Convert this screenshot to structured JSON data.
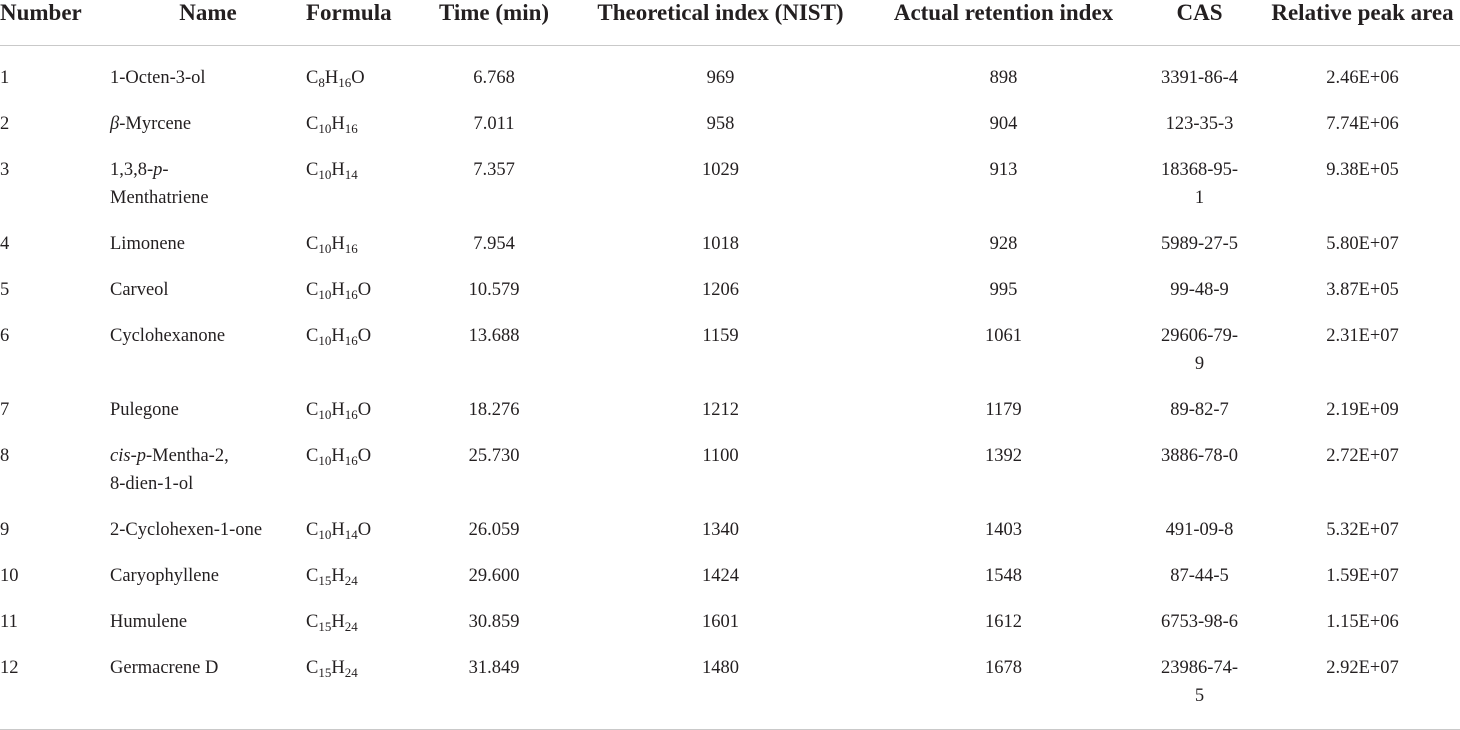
{
  "headers": {
    "number": "Number",
    "name": "Name",
    "formula": "Formula",
    "time": "Time (min)",
    "theoretical": "Theoretical index (NIST)",
    "actual": "Actual retention index",
    "cas": "CAS",
    "area": "Relative peak area"
  },
  "rows": [
    {
      "number": "1",
      "name": [
        {
          "t": "1-Octen-3-ol"
        }
      ],
      "formula": [
        {
          "t": "C"
        },
        {
          "t": "8",
          "sub": true
        },
        {
          "t": "H"
        },
        {
          "t": "16",
          "sub": true
        },
        {
          "t": "O"
        }
      ],
      "time": "6.768",
      "theoretical": "969",
      "actual": "898",
      "cas": [
        "3391-86-4"
      ],
      "area": "2.46E+06"
    },
    {
      "number": "2",
      "name": [
        {
          "t": "β",
          "i": true
        },
        {
          "t": "-Myrcene"
        }
      ],
      "formula": [
        {
          "t": "C"
        },
        {
          "t": "10",
          "sub": true
        },
        {
          "t": "H"
        },
        {
          "t": "16",
          "sub": true
        }
      ],
      "time": "7.011",
      "theoretical": "958",
      "actual": "904",
      "cas": [
        "123-35-3"
      ],
      "area": "7.74E+06"
    },
    {
      "number": "3",
      "name": [
        {
          "t": "1,3,8-"
        },
        {
          "t": "p",
          "i": true
        },
        {
          "t": "-"
        },
        {
          "br": true
        },
        {
          "t": "Menthatriene"
        }
      ],
      "formula": [
        {
          "t": "C"
        },
        {
          "t": "10",
          "sub": true
        },
        {
          "t": "H"
        },
        {
          "t": "14",
          "sub": true
        }
      ],
      "time": "7.357",
      "theoretical": "1029",
      "actual": "913",
      "cas": [
        "18368-95-",
        "1"
      ],
      "area": "9.38E+05"
    },
    {
      "number": "4",
      "name": [
        {
          "t": "Limonene"
        }
      ],
      "formula": [
        {
          "t": "C"
        },
        {
          "t": "10",
          "sub": true
        },
        {
          "t": "H"
        },
        {
          "t": "16",
          "sub": true
        }
      ],
      "time": "7.954",
      "theoretical": "1018",
      "actual": "928",
      "cas": [
        "5989-27-5"
      ],
      "area": "5.80E+07"
    },
    {
      "number": "5",
      "name": [
        {
          "t": "Carveol"
        }
      ],
      "formula": [
        {
          "t": "C"
        },
        {
          "t": "10",
          "sub": true
        },
        {
          "t": "H"
        },
        {
          "t": "16",
          "sub": true
        },
        {
          "t": "O"
        }
      ],
      "time": "10.579",
      "theoretical": "1206",
      "actual": "995",
      "cas": [
        "99-48-9"
      ],
      "area": "3.87E+05"
    },
    {
      "number": "6",
      "name": [
        {
          "t": "Cyclohexanone"
        }
      ],
      "formula": [
        {
          "t": "C"
        },
        {
          "t": "10",
          "sub": true
        },
        {
          "t": "H"
        },
        {
          "t": "16",
          "sub": true
        },
        {
          "t": "O"
        }
      ],
      "time": "13.688",
      "theoretical": "1159",
      "actual": "1061",
      "cas": [
        "29606-79-",
        "9"
      ],
      "area": "2.31E+07"
    },
    {
      "number": "7",
      "name": [
        {
          "t": "Pulegone"
        }
      ],
      "formula": [
        {
          "t": "C"
        },
        {
          "t": "10",
          "sub": true
        },
        {
          "t": "H"
        },
        {
          "t": "16",
          "sub": true
        },
        {
          "t": "O"
        }
      ],
      "time": "18.276",
      "theoretical": "1212",
      "actual": "1179",
      "cas": [
        "89-82-7"
      ],
      "area": "2.19E+09"
    },
    {
      "number": "8",
      "name": [
        {
          "t": "cis",
          "i": true
        },
        {
          "t": "-"
        },
        {
          "t": "p",
          "i": true
        },
        {
          "t": "-Mentha-2,"
        },
        {
          "br": true
        },
        {
          "t": "8-dien-1-ol"
        }
      ],
      "formula": [
        {
          "t": "C"
        },
        {
          "t": "10",
          "sub": true
        },
        {
          "t": "H"
        },
        {
          "t": "16",
          "sub": true
        },
        {
          "t": "O"
        }
      ],
      "time": "25.730",
      "theoretical": "1100",
      "actual": "1392",
      "cas": [
        "3886-78-0"
      ],
      "area": "2.72E+07"
    },
    {
      "number": "9",
      "name": [
        {
          "t": "2-Cyclohexen-1-one"
        }
      ],
      "formula": [
        {
          "t": "C"
        },
        {
          "t": "10",
          "sub": true
        },
        {
          "t": "H"
        },
        {
          "t": "14",
          "sub": true
        },
        {
          "t": "O"
        }
      ],
      "time": "26.059",
      "theoretical": "1340",
      "actual": "1403",
      "cas": [
        "491-09-8"
      ],
      "area": "5.32E+07"
    },
    {
      "number": "10",
      "name": [
        {
          "t": "Caryophyllene"
        }
      ],
      "formula": [
        {
          "t": "C"
        },
        {
          "t": "15",
          "sub": true
        },
        {
          "t": "H"
        },
        {
          "t": "24",
          "sub": true
        }
      ],
      "time": "29.600",
      "theoretical": "1424",
      "actual": "1548",
      "cas": [
        "87-44-5"
      ],
      "area": "1.59E+07"
    },
    {
      "number": "11",
      "name": [
        {
          "t": "Humulene"
        }
      ],
      "formula": [
        {
          "t": "C"
        },
        {
          "t": "15",
          "sub": true
        },
        {
          "t": "H"
        },
        {
          "t": "24",
          "sub": true
        }
      ],
      "time": "30.859",
      "theoretical": "1601",
      "actual": "1612",
      "cas": [
        "6753-98-6"
      ],
      "area": "1.15E+06"
    },
    {
      "number": "12",
      "name": [
        {
          "t": "Germacrene D"
        }
      ],
      "formula": [
        {
          "t": "C"
        },
        {
          "t": "15",
          "sub": true
        },
        {
          "t": "H"
        },
        {
          "t": "24",
          "sub": true
        }
      ],
      "time": "31.849",
      "theoretical": "1480",
      "actual": "1678",
      "cas": [
        "23986-74-",
        "5"
      ],
      "area": "2.92E+07"
    }
  ]
}
